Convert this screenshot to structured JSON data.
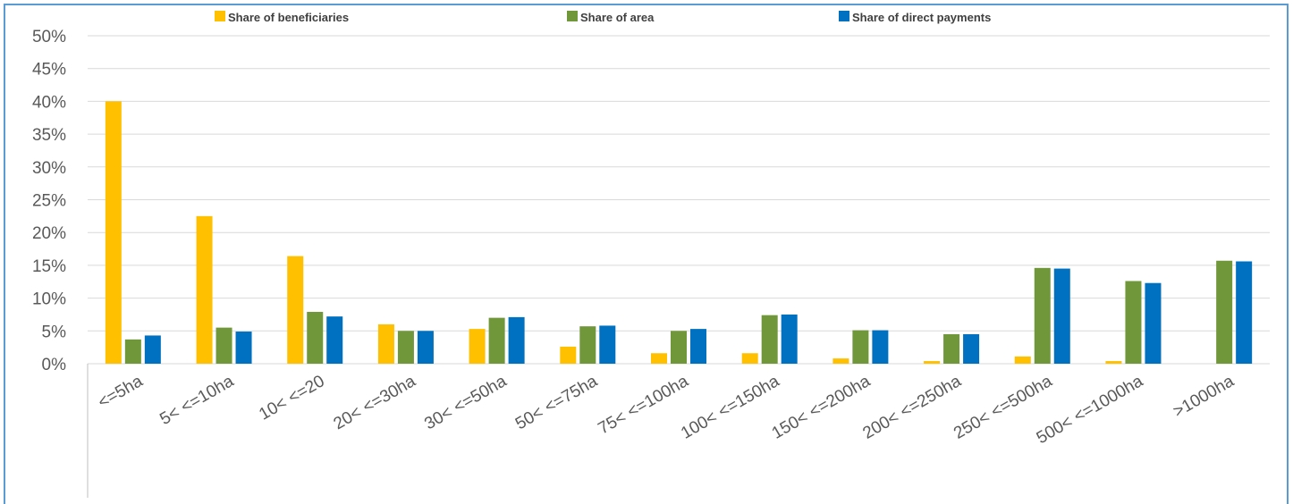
{
  "chart_data": {
    "type": "bar",
    "categories": [
      "<=5ha",
      "5< <=10ha",
      "10< <=20",
      "20< <=30ha",
      "30< <=50ha",
      "50< <=75ha",
      "75< <=100ha",
      "100< <=150ha",
      "150< <=200ha",
      "200< <=250ha",
      "250< <=500ha",
      "500< <=1000ha",
      ">1000ha"
    ],
    "series": [
      {
        "name": "Share of beneficiaries",
        "color": "#ffc000",
        "values": [
          40.0,
          22.5,
          16.4,
          6.0,
          5.3,
          2.6,
          1.6,
          1.6,
          0.8,
          0.4,
          1.1,
          0.4,
          0.0
        ]
      },
      {
        "name": "Share of area",
        "color": "#70973a",
        "values": [
          3.7,
          5.5,
          7.9,
          5.0,
          7.0,
          5.7,
          5.0,
          7.4,
          5.1,
          4.5,
          14.6,
          12.6,
          15.7
        ]
      },
      {
        "name": "Share of direct payments",
        "color": "#0070c0",
        "values": [
          4.3,
          4.9,
          7.2,
          5.0,
          7.1,
          5.8,
          5.3,
          7.5,
          5.1,
          4.5,
          14.5,
          12.3,
          15.6
        ]
      }
    ],
    "yticks": [
      "0%",
      "5%",
      "10%",
      "15%",
      "20%",
      "25%",
      "30%",
      "35%",
      "40%",
      "45%",
      "50%"
    ],
    "ylim": [
      0,
      50
    ],
    "grid": true,
    "legend_position": "top"
  }
}
